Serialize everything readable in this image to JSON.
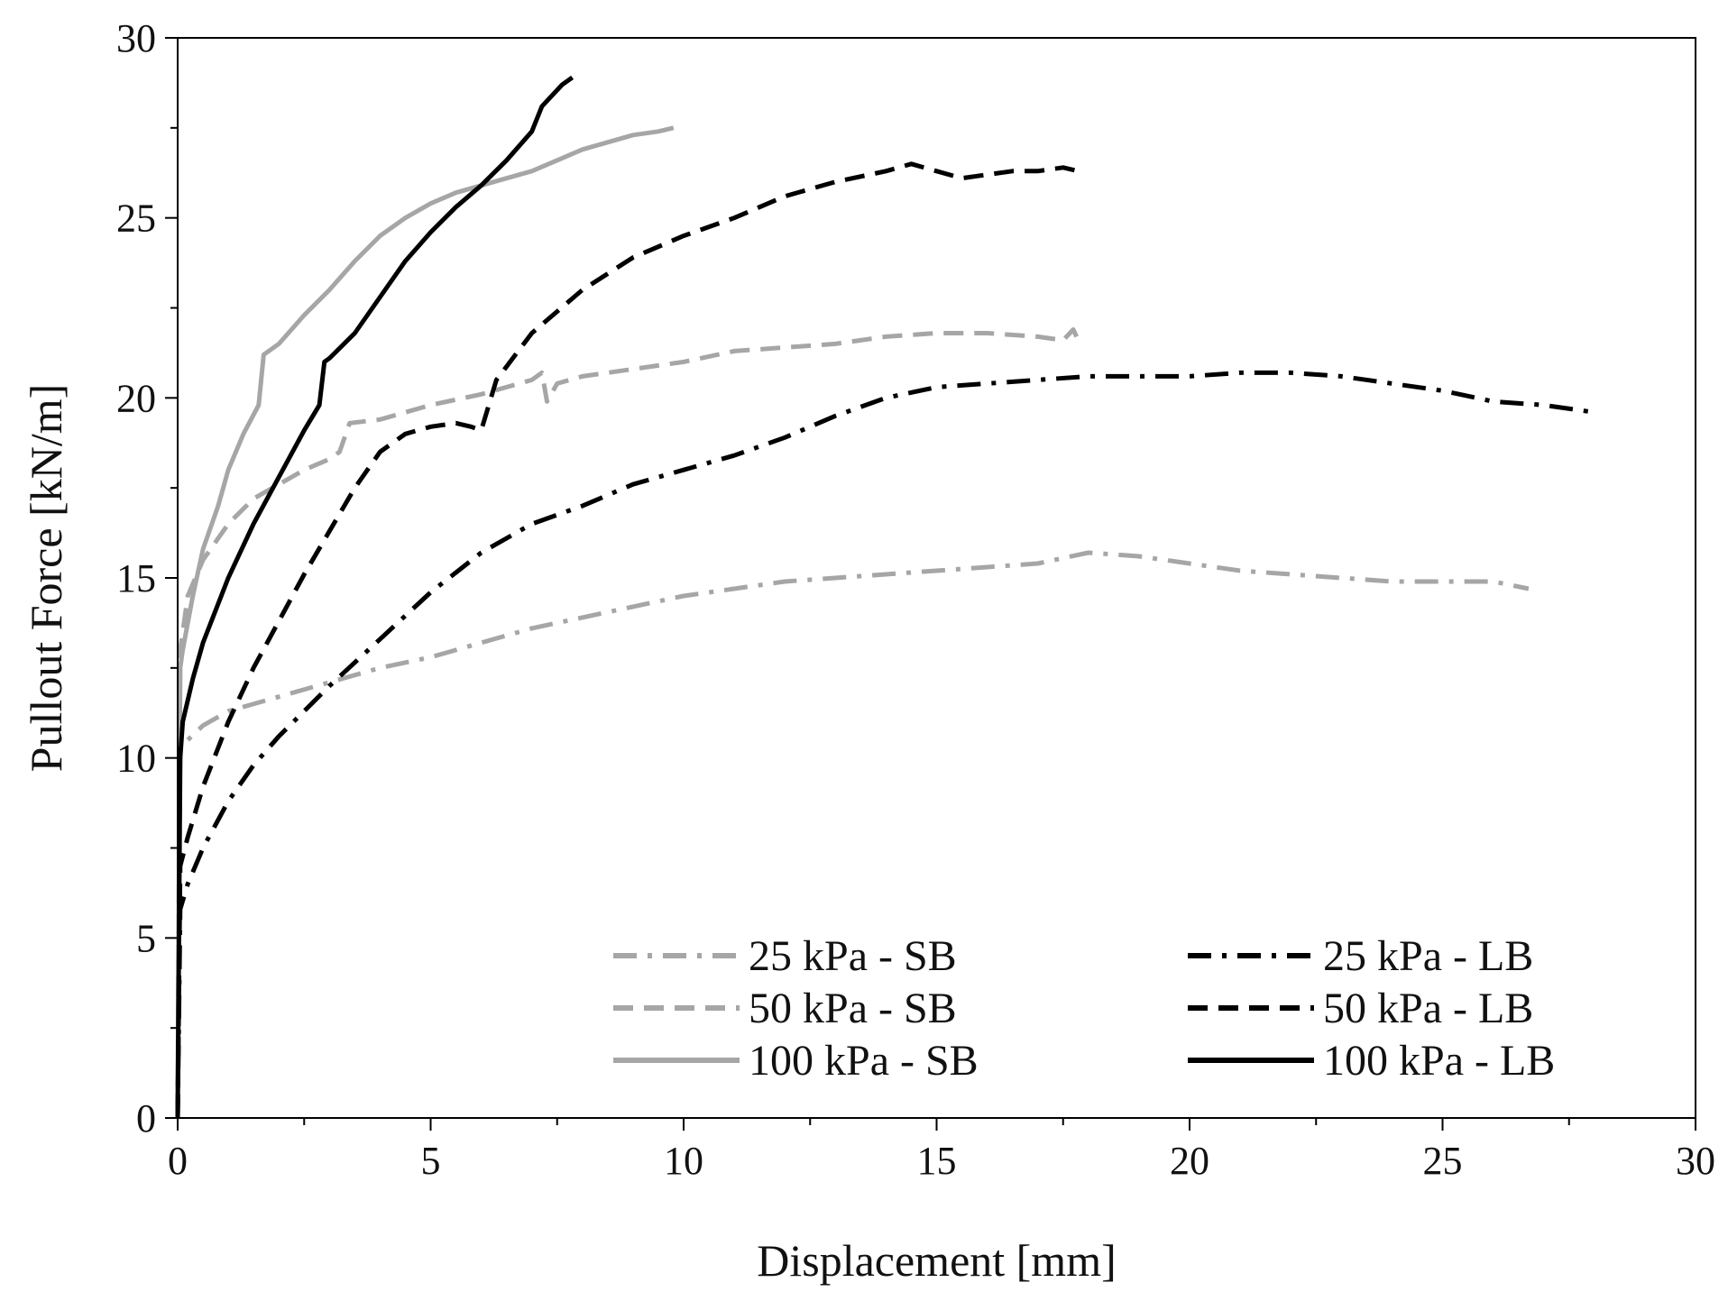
{
  "chart_data": {
    "type": "line",
    "title": "",
    "xlabel": "Displacement [mm]",
    "ylabel": "Pullout Force [kN/m]",
    "xlim": [
      0,
      30
    ],
    "ylim": [
      0,
      30
    ],
    "xticks": [
      0,
      5,
      10,
      15,
      20,
      25,
      30
    ],
    "yticks": [
      0,
      5,
      10,
      15,
      20,
      25,
      30
    ],
    "xtick_labels": [
      "0",
      "5",
      "10",
      "15",
      "20",
      "25",
      "30"
    ],
    "ytick_labels": [
      "0",
      "5",
      "10",
      "15",
      "20",
      "25",
      "30"
    ],
    "grid": false,
    "legend_position": "bottom-right",
    "series": [
      {
        "name": "25 kPa - SB",
        "color": "#a6a6a6",
        "style": "dashdot",
        "x": [
          0,
          0.05,
          0.2,
          0.5,
          1,
          2,
          3,
          4,
          5,
          6,
          7,
          8,
          9,
          10,
          11,
          12,
          13,
          14,
          15,
          16,
          17,
          18,
          19,
          20,
          21,
          22,
          23,
          24,
          25,
          26,
          26.7
        ],
        "y": [
          0,
          10.3,
          10.5,
          10.9,
          11.3,
          11.7,
          12.1,
          12.5,
          12.8,
          13.2,
          13.6,
          13.9,
          14.2,
          14.5,
          14.7,
          14.9,
          15.0,
          15.1,
          15.2,
          15.3,
          15.4,
          15.7,
          15.6,
          15.4,
          15.2,
          15.1,
          15.0,
          14.9,
          14.9,
          14.9,
          14.7
        ]
      },
      {
        "name": "50 kPa - SB",
        "color": "#a6a6a6",
        "style": "dashed",
        "x": [
          0,
          0.05,
          0.2,
          0.5,
          1,
          1.5,
          2,
          2.5,
          3,
          3.2,
          3.4,
          4,
          5,
          6,
          7,
          7.2,
          7.3,
          7.5,
          8,
          9,
          10,
          11,
          12,
          13,
          14,
          15,
          16,
          17,
          17.5,
          17.7,
          17.8
        ],
        "y": [
          0,
          13.0,
          14.5,
          15.5,
          16.5,
          17.2,
          17.6,
          18.0,
          18.3,
          18.5,
          19.3,
          19.4,
          19.8,
          20.1,
          20.5,
          20.7,
          19.9,
          20.4,
          20.6,
          20.8,
          21.0,
          21.3,
          21.4,
          21.5,
          21.7,
          21.8,
          21.8,
          21.7,
          21.6,
          21.9,
          21.6
        ]
      },
      {
        "name": "100 kPa - SB",
        "color": "#a6a6a6",
        "style": "solid",
        "x": [
          0,
          0.05,
          0.1,
          0.3,
          0.5,
          0.8,
          1.0,
          1.3,
          1.6,
          1.7,
          1.8,
          2.0,
          2.5,
          3,
          3.5,
          4,
          4.5,
          5,
          5.5,
          6,
          6.5,
          7,
          7.5,
          8,
          8.5,
          9,
          9.5,
          9.8
        ],
        "y": [
          0,
          12.5,
          13.0,
          14.5,
          15.8,
          17.0,
          18.0,
          19.0,
          19.8,
          21.2,
          21.3,
          21.5,
          22.3,
          23.0,
          23.8,
          24.5,
          25.0,
          25.4,
          25.7,
          25.9,
          26.1,
          26.3,
          26.6,
          26.9,
          27.1,
          27.3,
          27.4,
          27.5
        ]
      },
      {
        "name": "25 kPa - LB",
        "color": "#000000",
        "style": "dashdot",
        "x": [
          0,
          0.05,
          0.2,
          0.5,
          1,
          1.5,
          2,
          3,
          4,
          5,
          6,
          7,
          8,
          9,
          10,
          11,
          12,
          13,
          14,
          15,
          16,
          17,
          18,
          19,
          20,
          21,
          22,
          23,
          24,
          25,
          26,
          27,
          28
        ],
        "y": [
          0,
          5.8,
          6.5,
          7.5,
          8.8,
          9.8,
          10.6,
          12.0,
          13.3,
          14.6,
          15.7,
          16.5,
          17.0,
          17.6,
          18.0,
          18.4,
          18.9,
          19.5,
          20.0,
          20.3,
          20.4,
          20.5,
          20.6,
          20.6,
          20.6,
          20.7,
          20.7,
          20.6,
          20.4,
          20.2,
          19.9,
          19.8,
          19.6
        ]
      },
      {
        "name": "50 kPa - LB",
        "color": "#000000",
        "style": "dashed",
        "x": [
          0,
          0.05,
          0.2,
          0.5,
          1,
          1.5,
          2,
          2.5,
          3,
          3.5,
          4,
          4.5,
          5,
          5.5,
          5.8,
          6.0,
          6.3,
          7,
          8,
          9,
          10,
          11,
          12,
          13,
          14,
          14.5,
          15,
          15.5,
          16,
          16.5,
          17,
          17.5,
          17.8
        ],
        "y": [
          0,
          7.0,
          7.8,
          9.2,
          11.0,
          12.5,
          13.8,
          15.1,
          16.3,
          17.5,
          18.5,
          19.0,
          19.2,
          19.3,
          19.2,
          19.1,
          20.5,
          21.8,
          23.0,
          23.9,
          24.5,
          25.0,
          25.6,
          26.0,
          26.3,
          26.5,
          26.3,
          26.1,
          26.2,
          26.3,
          26.3,
          26.4,
          26.3
        ]
      },
      {
        "name": "100 kPa - LB",
        "color": "#000000",
        "style": "solid",
        "x": [
          0,
          0.05,
          0.1,
          0.3,
          0.5,
          1.0,
          1.5,
          2.0,
          2.5,
          2.8,
          2.9,
          3.0,
          3.5,
          4,
          4.5,
          5,
          5.5,
          6,
          6.5,
          7,
          7.2,
          7.4,
          7.6,
          7.8
        ],
        "y": [
          0,
          10.0,
          11.0,
          12.2,
          13.2,
          15.0,
          16.5,
          17.8,
          19.1,
          19.8,
          21.0,
          21.1,
          21.8,
          22.8,
          23.8,
          24.6,
          25.3,
          25.9,
          26.6,
          27.4,
          28.1,
          28.4,
          28.7,
          28.9
        ]
      }
    ]
  }
}
